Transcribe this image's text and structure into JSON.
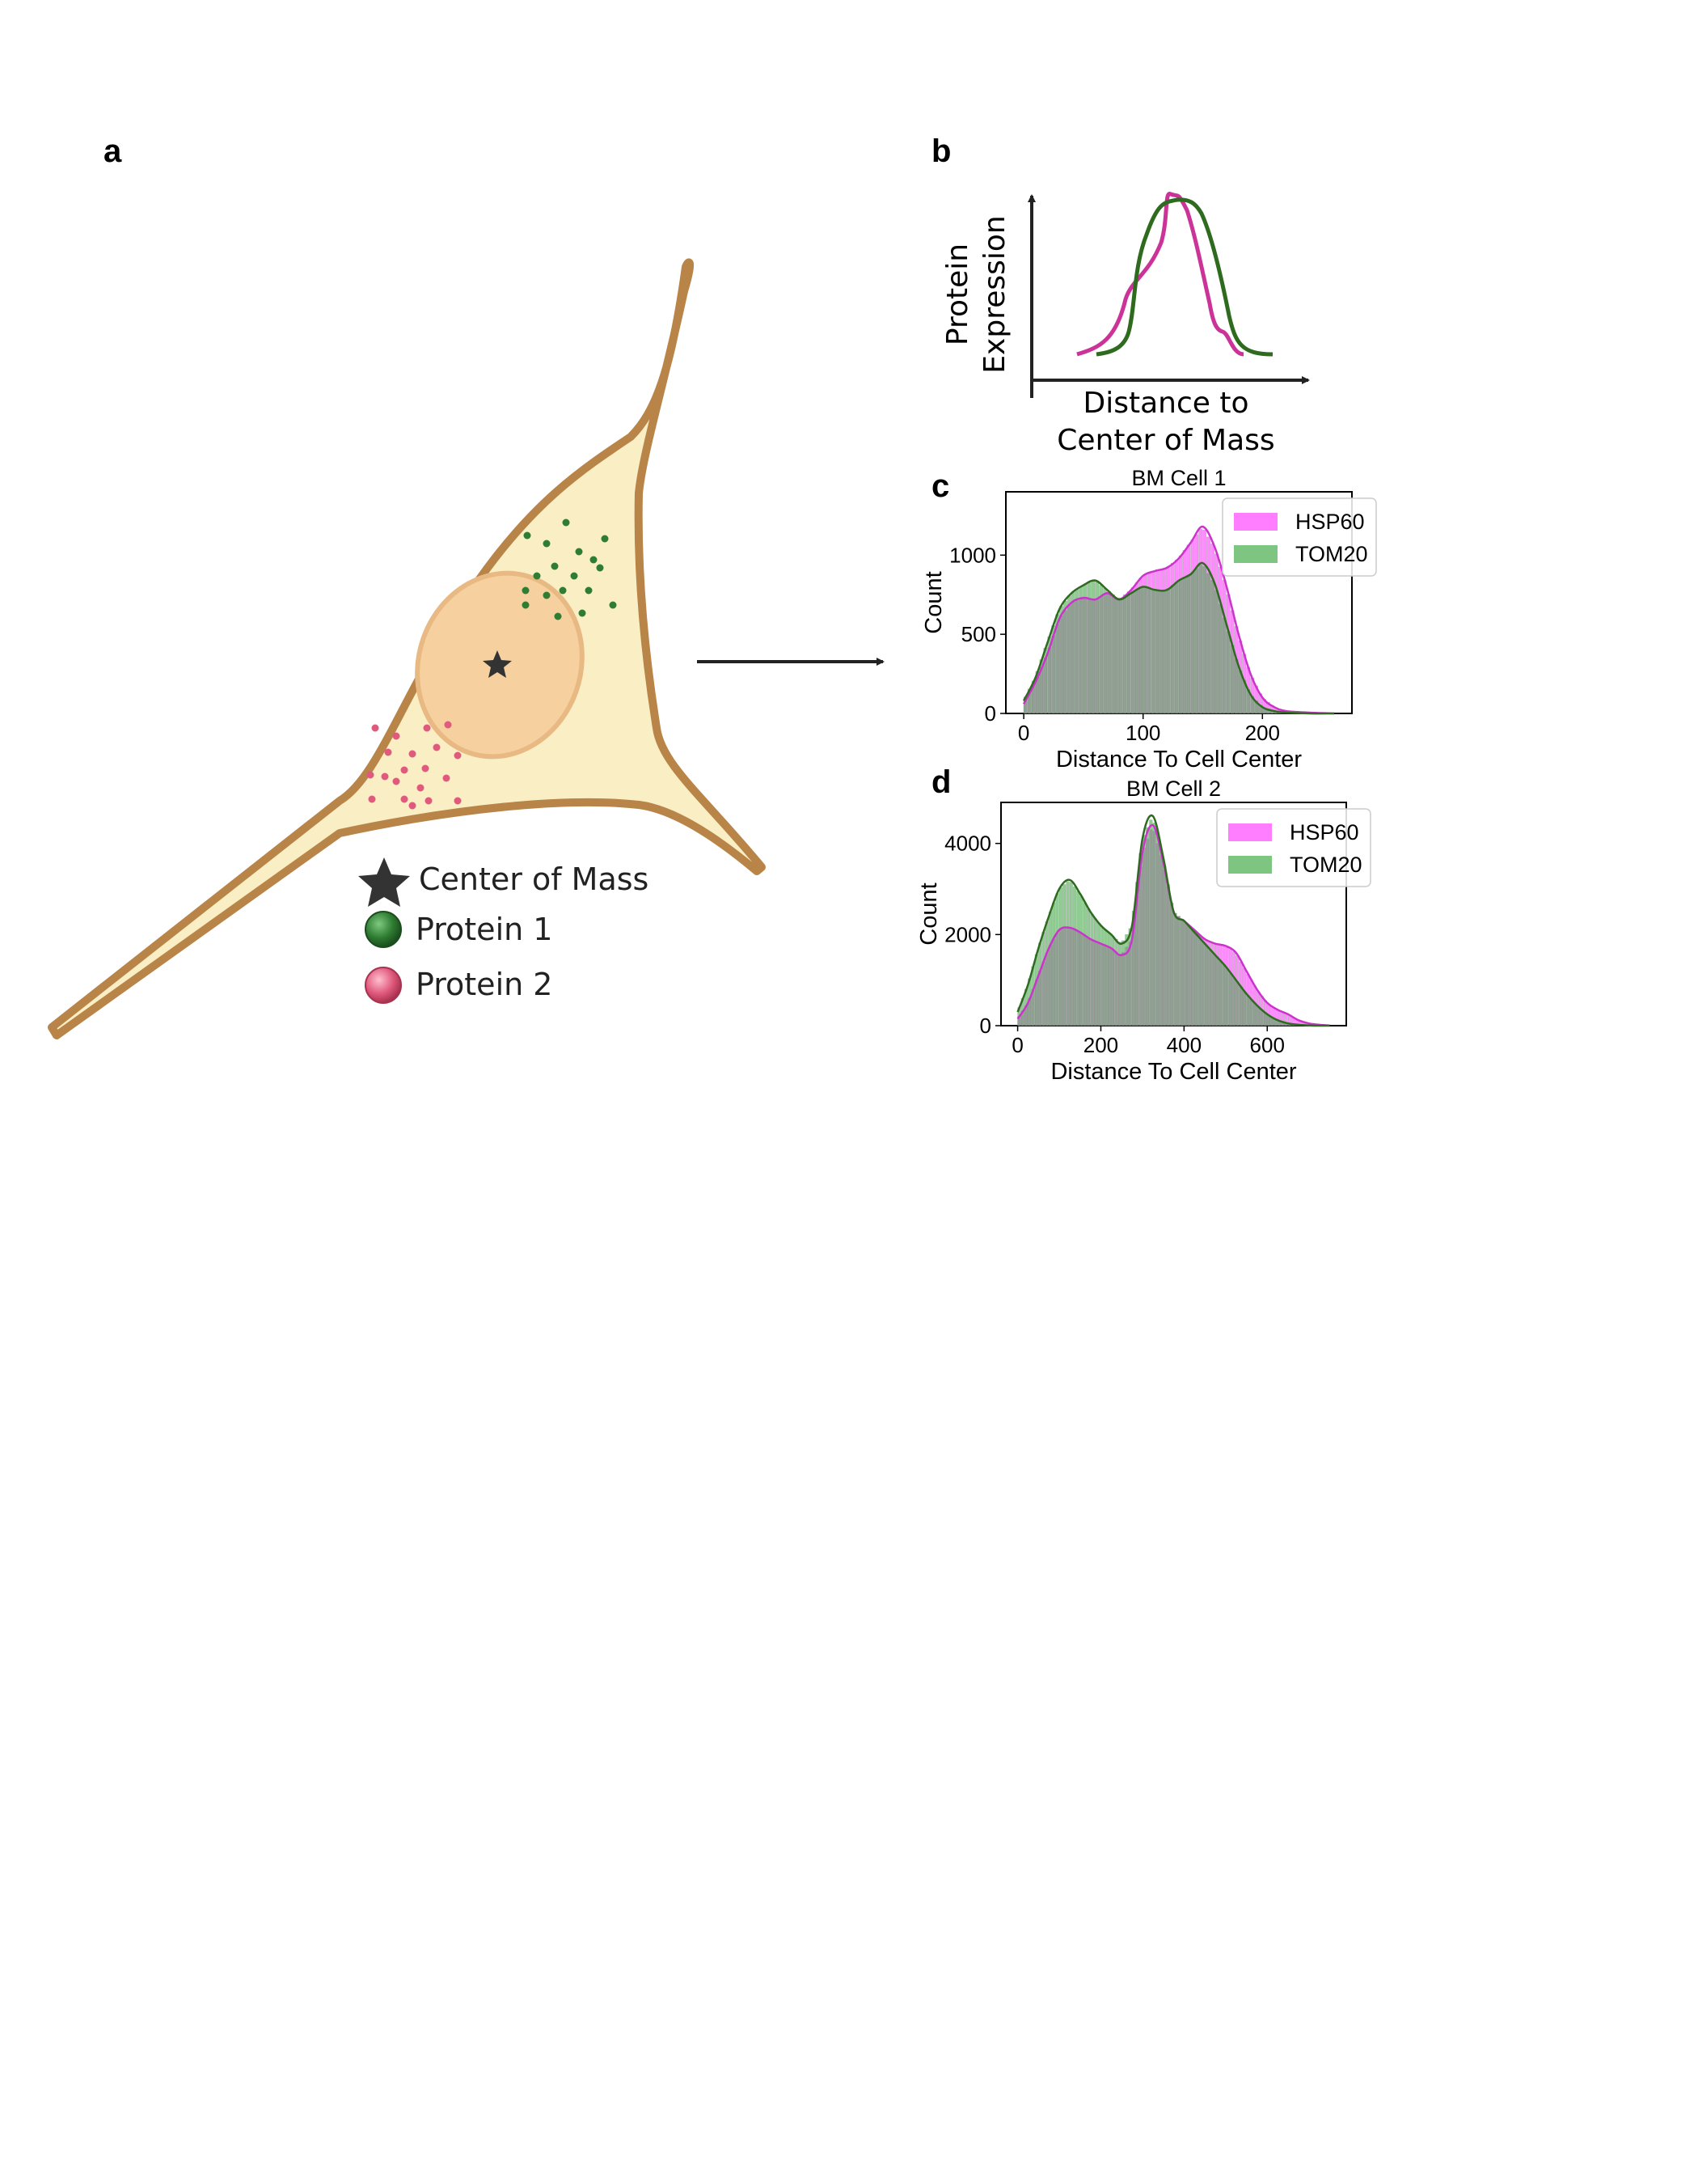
{
  "panel_labels": {
    "a": "a",
    "b": "b",
    "c": "c",
    "d": "d"
  },
  "cell_legend": {
    "center": "Center of Mass",
    "protein1": "Protein 1",
    "protein2": "Protein 2"
  },
  "colors": {
    "cytoplasm": "#faeec5",
    "membrane": "#b88448",
    "nucleus": "#f6d09e",
    "nucleus_edge": "#e8b983",
    "protein1": "#2e7d32",
    "protein2": "#e05a7e",
    "hsp60": "#ff66ff",
    "tom20": "#4caf50",
    "kde_hsp60": "#cc33cc",
    "kde_tom20": "#2e6b1f"
  },
  "schematic": {
    "ylabel_line1": "Protein",
    "ylabel_line2": "Expression",
    "xlabel_line1": "Distance to",
    "xlabel_line2": "Center of Mass"
  },
  "chart_data": [
    {
      "type": "bar",
      "panel": "c",
      "title": "BM Cell 1",
      "xlabel": "Distance To Cell Center",
      "ylabel": "Count",
      "xlim": [
        -15,
        275
      ],
      "ylim": [
        0,
        1400
      ],
      "xticks": [
        0,
        100,
        200
      ],
      "yticks": [
        0,
        500,
        1000
      ],
      "legend_position": "top-right",
      "x": [
        0,
        10,
        20,
        30,
        40,
        50,
        60,
        70,
        80,
        90,
        100,
        110,
        120,
        130,
        140,
        150,
        160,
        170,
        180,
        190,
        200,
        210,
        220,
        240,
        260
      ],
      "series": [
        {
          "name": "HSP60",
          "values": [
            60,
            200,
            380,
            600,
            700,
            730,
            720,
            760,
            720,
            780,
            870,
            900,
            920,
            980,
            1080,
            1180,
            1050,
            800,
            500,
            250,
            100,
            40,
            15,
            5,
            0
          ]
        },
        {
          "name": "TOM20",
          "values": [
            80,
            230,
            450,
            660,
            760,
            810,
            840,
            780,
            720,
            760,
            800,
            780,
            780,
            840,
            880,
            950,
            820,
            560,
            300,
            120,
            40,
            15,
            5,
            0,
            0
          ]
        }
      ]
    },
    {
      "type": "bar",
      "panel": "d",
      "title": "BM Cell 2",
      "xlabel": "Distance To Cell Center",
      "ylabel": "Count",
      "xlim": [
        -40,
        790
      ],
      "ylim": [
        0,
        4900
      ],
      "xticks": [
        0,
        200,
        400,
        600
      ],
      "yticks": [
        0,
        2000,
        4000
      ],
      "legend_position": "top-right",
      "x": [
        0,
        25,
        50,
        75,
        100,
        125,
        150,
        175,
        200,
        225,
        250,
        275,
        300,
        325,
        350,
        375,
        400,
        425,
        450,
        475,
        500,
        525,
        550,
        575,
        600,
        625,
        650,
        675,
        700,
        725,
        750
      ],
      "series": [
        {
          "name": "HSP60",
          "values": [
            150,
            500,
            1100,
            1700,
            2100,
            2150,
            2050,
            1900,
            1800,
            1700,
            1550,
            1900,
            3800,
            4400,
            3600,
            2500,
            2300,
            2100,
            1900,
            1800,
            1750,
            1600,
            1200,
            800,
            500,
            350,
            250,
            120,
            50,
            20,
            5
          ]
        },
        {
          "name": "TOM20",
          "values": [
            300,
            900,
            1700,
            2400,
            3000,
            3200,
            2900,
            2500,
            2200,
            2000,
            1800,
            2200,
            4100,
            4600,
            3700,
            2500,
            2300,
            2050,
            1800,
            1550,
            1300,
            1000,
            700,
            450,
            250,
            120,
            50,
            20,
            5,
            0,
            0
          ]
        }
      ]
    }
  ]
}
